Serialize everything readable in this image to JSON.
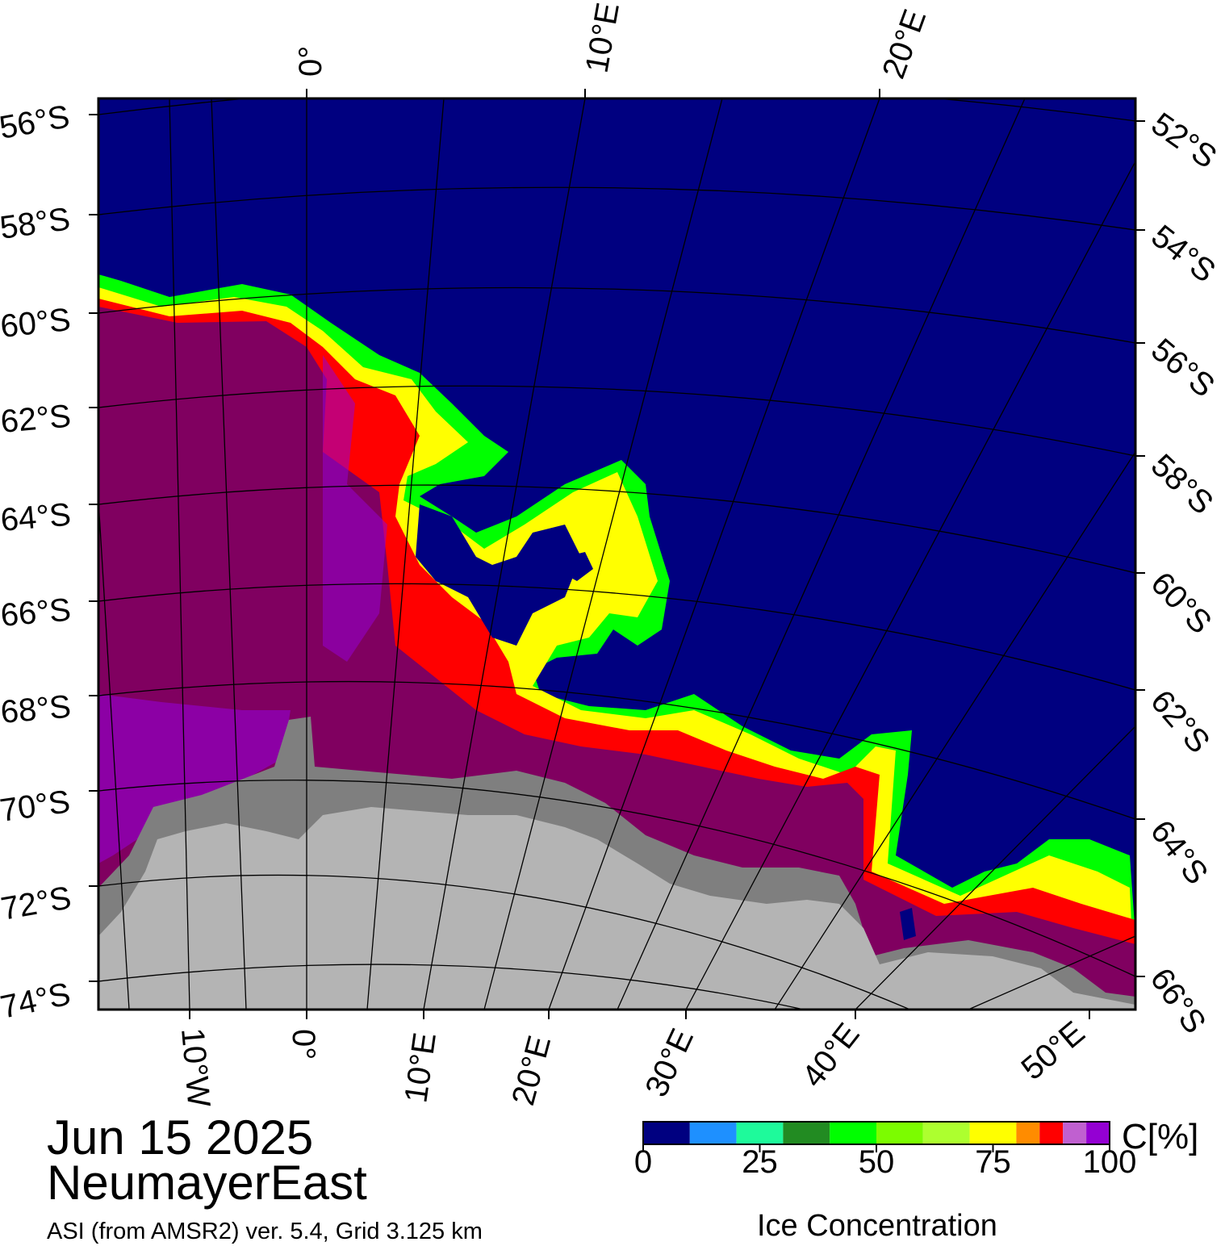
{
  "map": {
    "date": "Jun 15 2025",
    "region": "NeumayerEast",
    "source": "ASI (from AMSR2) ver. 5.4,  Grid 3.125 km",
    "projection": "polar stereographic (south)",
    "colors": {
      "open_water": "#000080",
      "land": "#b4b4b4",
      "ice_shelf": "#7f7f7f",
      "ice_100": "#800060",
      "frame": "#000000",
      "graticule": "#000000"
    },
    "longitude_labels_top": [
      "0°",
      "10°E",
      "20°E"
    ],
    "longitude_labels_bottom": [
      "10°W",
      "0°",
      "10°E",
      "20°E",
      "30°E",
      "40°E",
      "50°E"
    ],
    "latitude_labels_left": [
      "56°S",
      "58°S",
      "60°S",
      "62°S",
      "64°S",
      "66°S",
      "68°S",
      "70°S",
      "72°S",
      "74°S"
    ],
    "latitude_labels_right": [
      "52°S",
      "54°S",
      "56°S",
      "58°S",
      "60°S",
      "62°S",
      "64°S",
      "66°S"
    ]
  },
  "colorbar": {
    "title": "Ice Concentration",
    "unit": "C[%]",
    "ticks": [
      "0",
      "25",
      "50",
      "75",
      "100"
    ],
    "tick_values": [
      0,
      25,
      50,
      75,
      100
    ],
    "bins": [
      {
        "from": 0,
        "to": 10,
        "color": "#000080"
      },
      {
        "from": 10,
        "to": 20,
        "color": "#1e90ff"
      },
      {
        "from": 20,
        "to": 30,
        "color": "#1efa9b"
      },
      {
        "from": 30,
        "to": 40,
        "color": "#228b22"
      },
      {
        "from": 40,
        "to": 50,
        "color": "#00ff00"
      },
      {
        "from": 50,
        "to": 60,
        "color": "#7cfc00"
      },
      {
        "from": 60,
        "to": 70,
        "color": "#adff2f"
      },
      {
        "from": 70,
        "to": 80,
        "color": "#ffff00"
      },
      {
        "from": 80,
        "to": 85,
        "color": "#ff8c00"
      },
      {
        "from": 85,
        "to": 90,
        "color": "#ff0000"
      },
      {
        "from": 90,
        "to": 95,
        "color": "#c060d0"
      },
      {
        "from": 95,
        "to": 100,
        "color": "#9400d3"
      }
    ]
  }
}
